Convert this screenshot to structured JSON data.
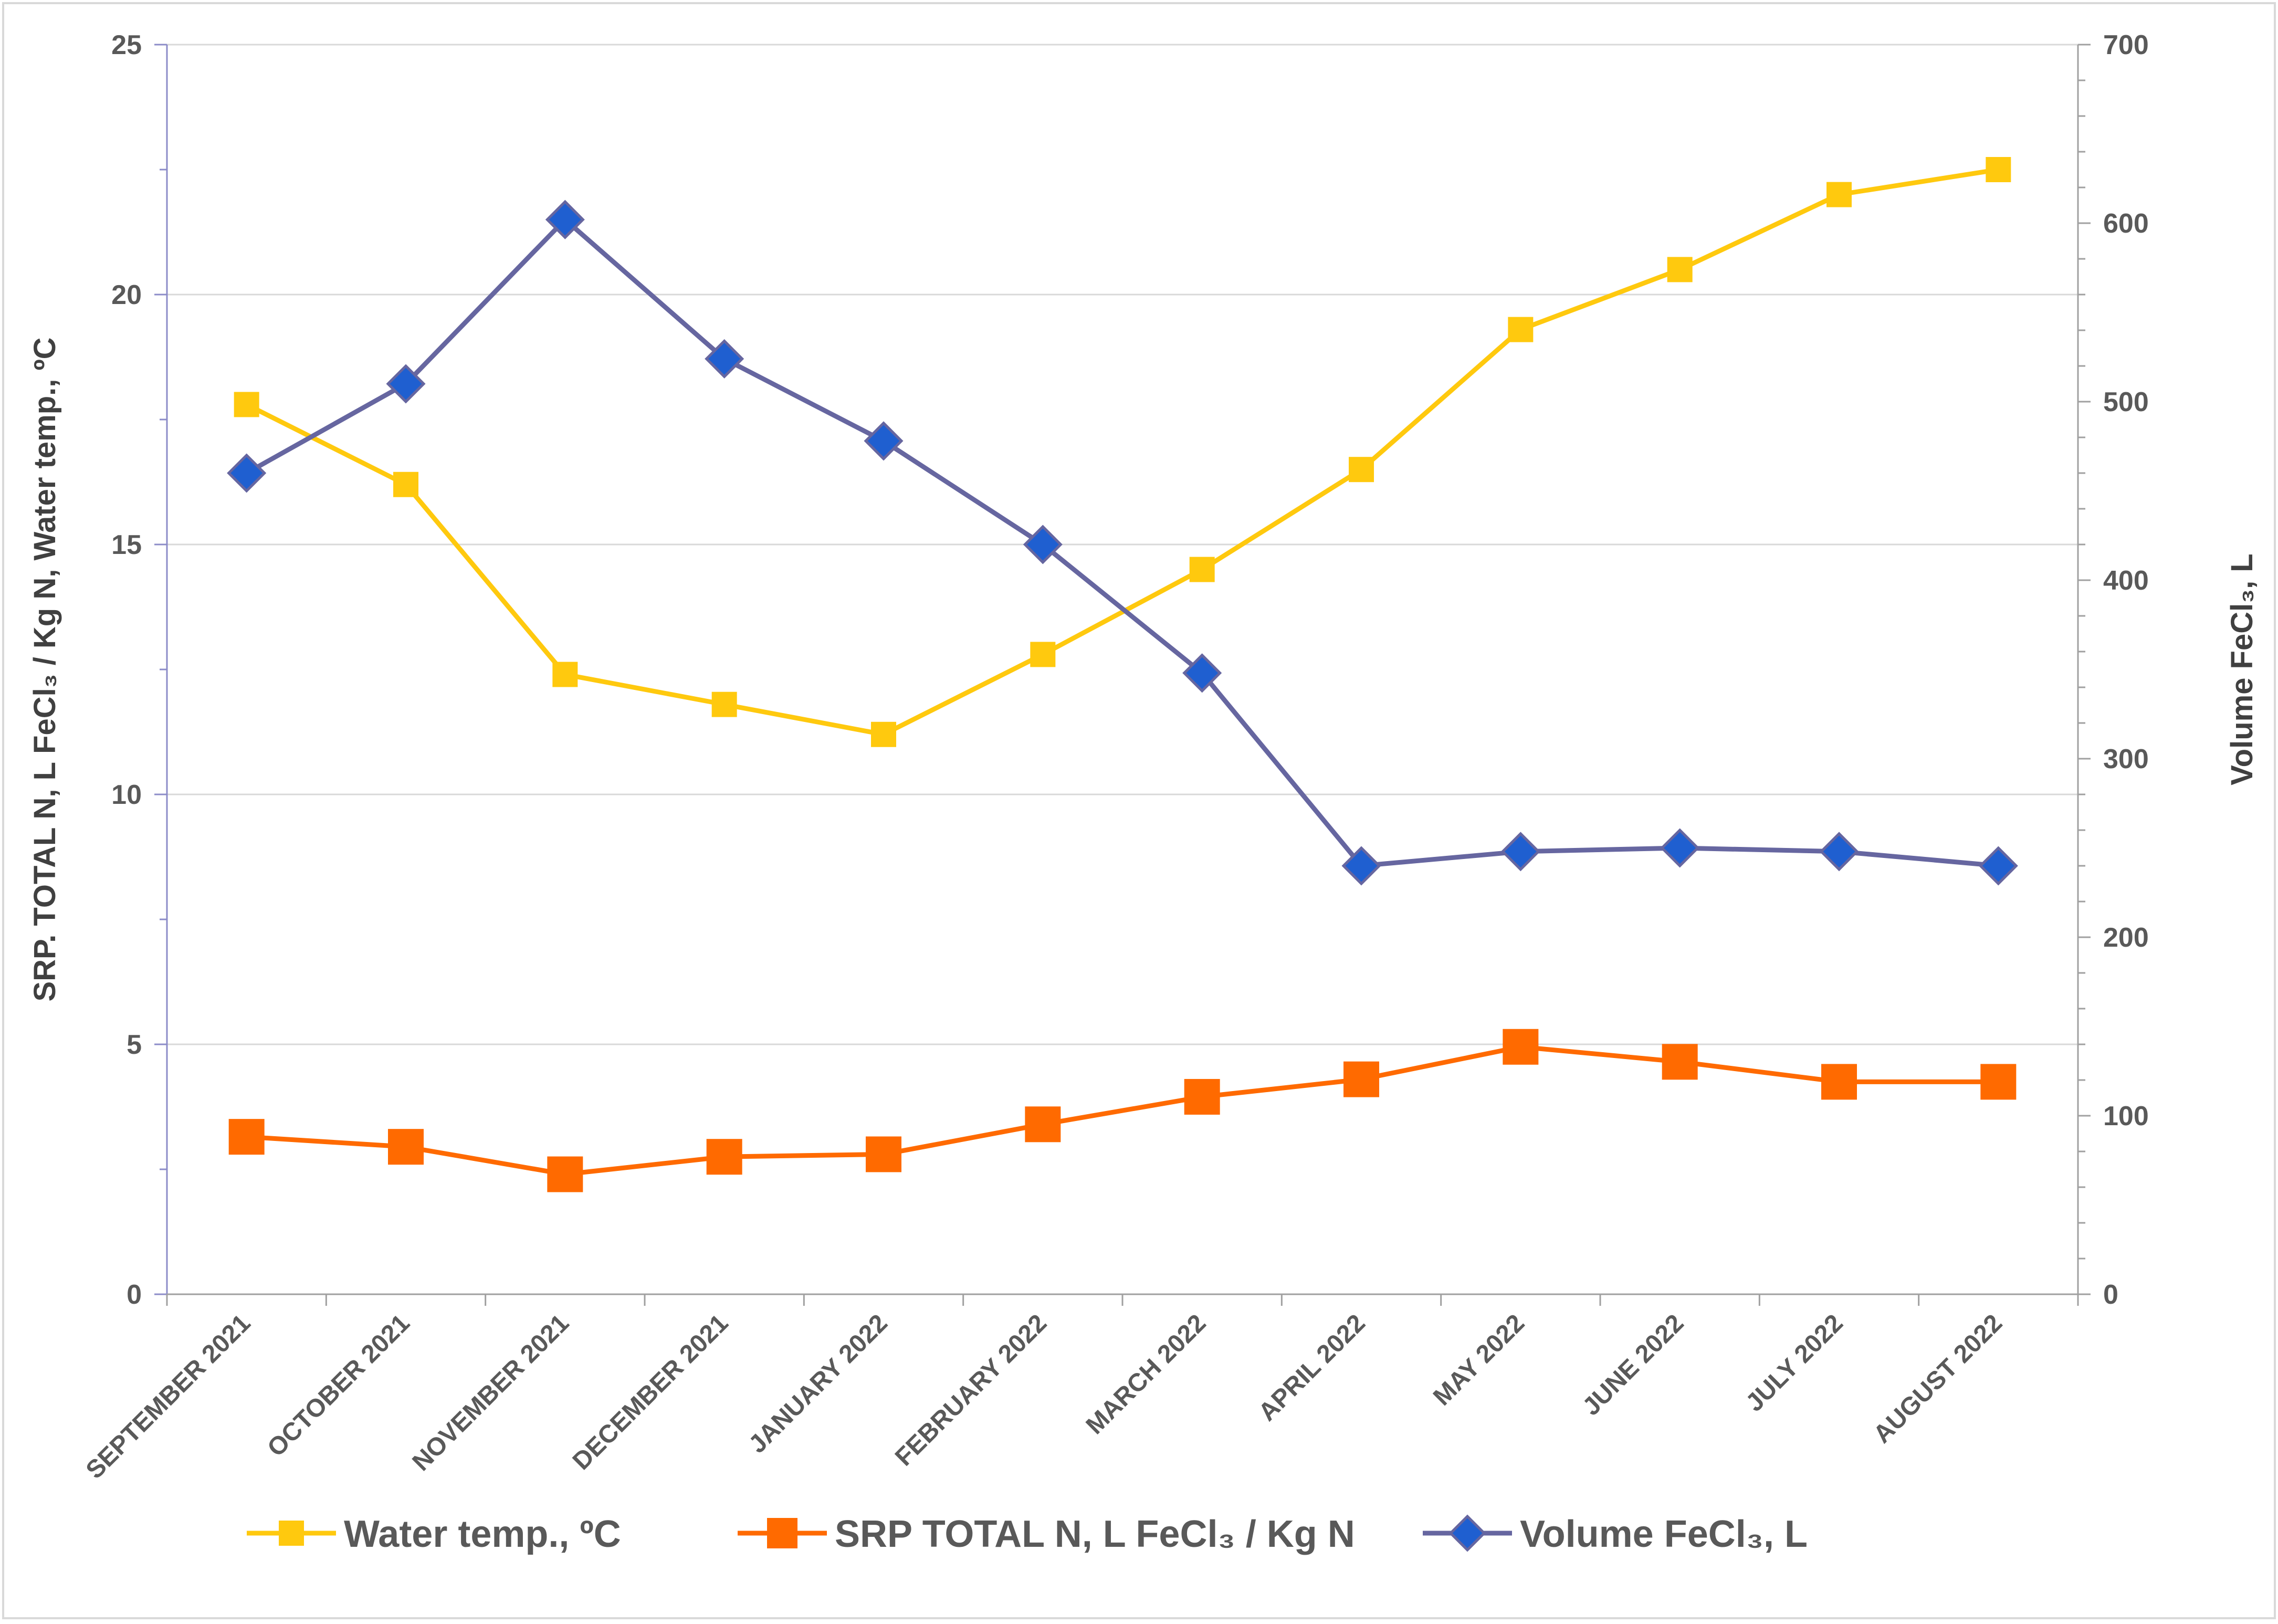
{
  "chart_data": {
    "type": "line",
    "categories": [
      "SEPTEMBER 2021",
      "OCTOBER 2021",
      "NOVEMBER 2021",
      "DECEMBER 2021",
      "JANUARY 2022",
      "FEBRUARY 2022",
      "MARCH  2022",
      "APRIL 2022",
      "MAY 2022",
      "JUNE 2022",
      "JULY 2022",
      "AUGUST 2022"
    ],
    "y_left": {
      "label": "SRP. TOTAL N, L FeCl₃ / Kg N,     Water temp., ºC",
      "range": [
        0,
        25
      ],
      "ticks": [
        "0",
        "5",
        "10",
        "15",
        "20",
        "25"
      ]
    },
    "y_right": {
      "label": "Volume FeCl₃, L",
      "range": [
        0,
        700
      ],
      "ticks": [
        "0",
        "100",
        "200",
        "300",
        "400",
        "500",
        "600",
        "700"
      ]
    },
    "series": [
      {
        "name": "Water temp., ºC",
        "axis": "left",
        "color": "#FFC90E",
        "marker": "square",
        "values": [
          17.8,
          16.2,
          12.4,
          11.8,
          11.2,
          12.8,
          14.5,
          16.5,
          19.3,
          20.5,
          22.0,
          22.5
        ]
      },
      {
        "name": "SRP TOTAL N, L FeCl₃ / Kg N",
        "axis": "left",
        "color": "#FF6A00",
        "marker": "square",
        "values": [
          3.15,
          2.95,
          2.4,
          2.75,
          2.8,
          3.4,
          3.95,
          4.3,
          4.95,
          4.65,
          4.25,
          4.25
        ]
      },
      {
        "name": "Volume FeCl₃, L",
        "axis": "right",
        "color": "#6666A0",
        "marker_color": "#1F5FD0",
        "marker": "diamond",
        "values": [
          460,
          510,
          602,
          524,
          478,
          420,
          348,
          240,
          248,
          250,
          248,
          240
        ]
      }
    ],
    "grid": true,
    "legend": "bottom"
  }
}
